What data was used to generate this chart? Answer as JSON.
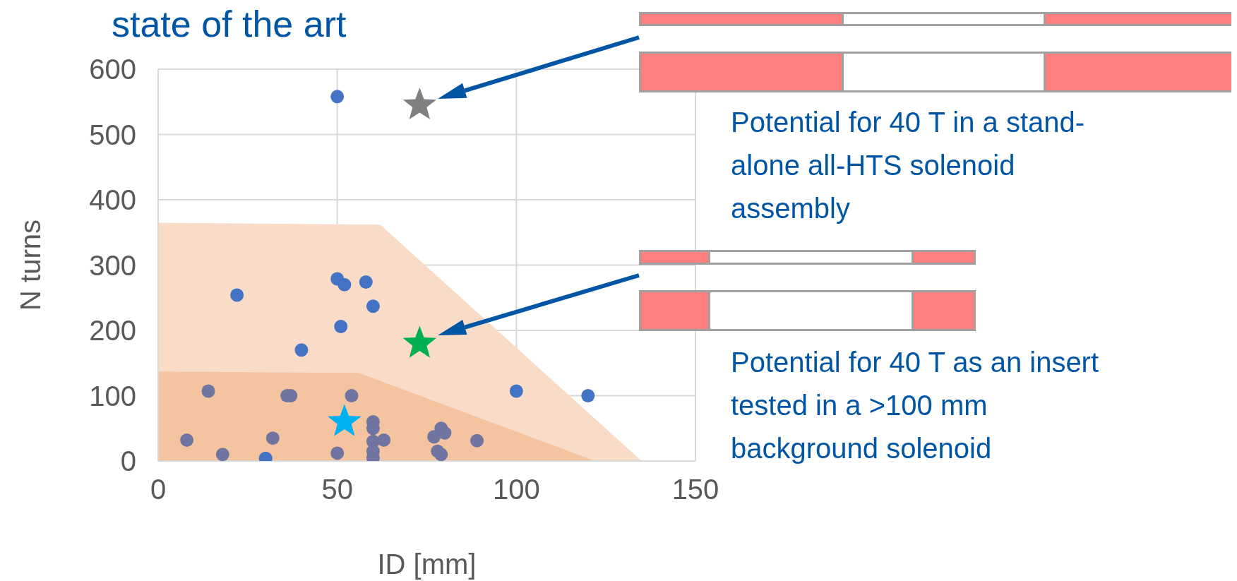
{
  "chart_data": {
    "type": "scatter",
    "title": "state of the art",
    "xlabel": "ID [mm]",
    "ylabel": "N turns",
    "xlim": [
      0,
      150
    ],
    "xticks": [
      0,
      50,
      100,
      150
    ],
    "ylim": [
      0,
      600
    ],
    "yticks": [
      0,
      100,
      200,
      300,
      400,
      500,
      600
    ],
    "grid": true,
    "series": [
      {
        "type": "area",
        "x": [
          0,
          62,
          135
        ],
        "values": [
          365,
          362,
          0
        ],
        "color": "#f8dcc8"
      },
      {
        "type": "area",
        "x": [
          0,
          56,
          122
        ],
        "values": [
          137,
          135,
          0
        ],
        "color": "#f4c4a0"
      },
      {
        "marker": "circle",
        "x": [
          50,
          22,
          50,
          52,
          58,
          60,
          51,
          40,
          100,
          120,
          8,
          14,
          18,
          30,
          32,
          36,
          37,
          50,
          54,
          60,
          60,
          60,
          60,
          60,
          63,
          77,
          78,
          79,
          79,
          80,
          89
        ],
        "values": [
          558,
          254,
          279,
          270,
          274,
          237,
          206,
          170,
          107,
          100,
          32,
          107,
          10,
          4,
          35,
          100,
          100,
          12,
          100,
          60,
          50,
          30,
          15,
          5,
          32,
          37,
          15,
          10,
          50,
          43,
          31
        ],
        "colors": [
          "#4472c4",
          "#4472c4",
          "#4472c4",
          "#4472c4",
          "#4472c4",
          "#4472c4",
          "#4472c4",
          "#4472c4",
          "#4472c4",
          "#4472c4",
          "#7074a0",
          "#7074a0",
          "#7074a0",
          "#4472c4",
          "#7074a0",
          "#7074a0",
          "#7074a0",
          "#7074a0",
          "#7074a0",
          "#7074a0",
          "#7074a0",
          "#7074a0",
          "#7074a0",
          "#7074a0",
          "#7074a0",
          "#7074a0",
          "#7074a0",
          "#7074a0",
          "#7074a0",
          "#7074a0",
          "#7074a0"
        ]
      },
      {
        "marker": "star",
        "x": [
          73
        ],
        "values": [
          545
        ],
        "color": "#808080"
      },
      {
        "marker": "star",
        "x": [
          73
        ],
        "values": [
          180
        ],
        "color": "#00b050"
      },
      {
        "marker": "star",
        "x": [
          52
        ],
        "values": [
          60
        ],
        "color": "#00b0f0"
      }
    ],
    "annotations": [
      "Potential for 40 T in a stand-alone all-HTS solenoid assembly",
      "Potential for 40 T as an insert tested in a >100 mm background solenoid"
    ]
  }
}
